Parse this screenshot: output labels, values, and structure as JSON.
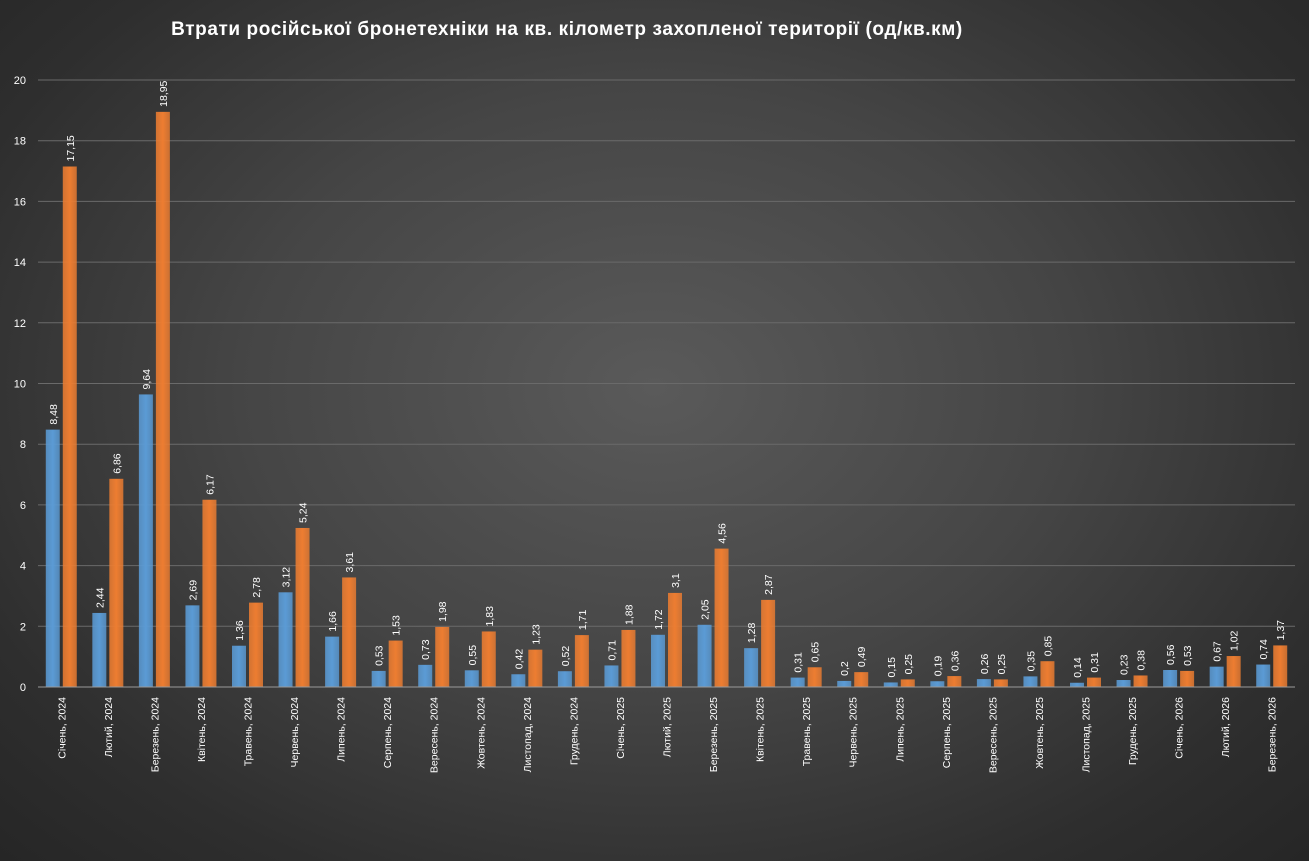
{
  "chart_data": {
    "type": "bar",
    "title": "Втрати російської бронетехніки на кв. кілометр захопленої території (од/кв.км)",
    "ylim": [
      0,
      20
    ],
    "yticks": [
      0,
      2,
      4,
      6,
      8,
      10,
      12,
      14,
      16,
      18,
      20
    ],
    "grid": true,
    "legend": "none",
    "categories": [
      "Січень, 2024",
      "Лютий, 2024",
      "Березень, 2024",
      "Квітень, 2024",
      "Травень, 2024",
      "Червень, 2024",
      "Липень, 2024",
      "Серпень, 2024",
      "Вересень, 2024",
      "Жовтень, 2024",
      "Листопад, 2024",
      "Грудень, 2024",
      "Січень, 2025",
      "Лютий, 2025",
      "Березень, 2025",
      "Квітень, 2025",
      "Травень, 2025",
      "Червень, 2025",
      "Липень, 2025",
      "Серпень, 2025",
      "Вересень, 2025",
      "Жовтень, 2025",
      "Листопад, 2025",
      "Грудень, 2025",
      "Січень, 2026",
      "Лютий, 2026",
      "Березень, 2026"
    ],
    "series": [
      {
        "color": "#5b9bd5",
        "values": [
          8.48,
          2.44,
          9.64,
          2.69,
          1.36,
          3.12,
          1.66,
          0.53,
          0.73,
          0.55,
          0.42,
          0.52,
          0.71,
          1.72,
          2.05,
          1.28,
          0.31,
          0.2,
          0.15,
          0.19,
          0.26,
          0.35,
          0.14,
          0.23,
          0.56,
          0.67,
          0.74
        ],
        "labels": [
          "8,48",
          "2,44",
          "9,64",
          "2,69",
          "1,36",
          "3,12",
          "1,66",
          "0,53",
          "0,73",
          "0,55",
          "0,42",
          "0,52",
          "0,71",
          "1,72",
          "2,05",
          "1,28",
          "0,31",
          "0,2",
          "0,15",
          "0,19",
          "0,26",
          "0,35",
          "0,14",
          "0,23",
          "0,56",
          "0,67",
          "0,74"
        ]
      },
      {
        "color": "#ed7d31",
        "values": [
          17.15,
          6.86,
          18.95,
          6.17,
          2.78,
          5.24,
          3.61,
          1.53,
          1.98,
          1.83,
          1.23,
          1.71,
          1.88,
          3.1,
          4.56,
          2.87,
          0.65,
          0.49,
          0.25,
          0.36,
          0.25,
          0.85,
          0.31,
          0.38,
          0.53,
          1.02,
          1.37
        ],
        "labels": [
          "17,15",
          "6,86",
          "18,95",
          "6,17",
          "2,78",
          "5,24",
          "3,61",
          "1,53",
          "1,98",
          "1,83",
          "1,23",
          "1,71",
          "1,88",
          "3,1",
          "4,56",
          "2,87",
          "0,65",
          "0,49",
          "0,25",
          "0,36",
          "0,25",
          "0,85",
          "0,31",
          "0,38",
          "0,53",
          "1,02",
          "1,37"
        ]
      }
    ]
  }
}
